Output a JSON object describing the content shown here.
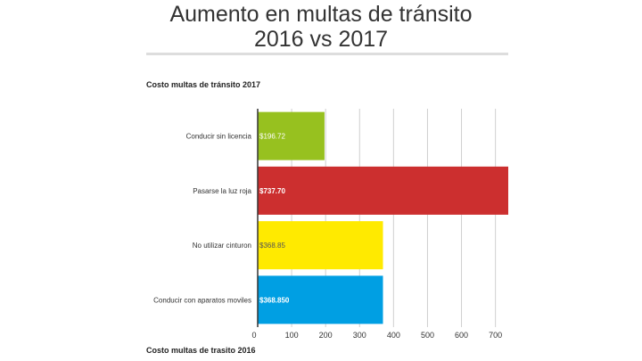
{
  "page": {
    "title": "Aumento en  multas de tránsito\n2016 vs 2017"
  },
  "chart_data": {
    "type": "bar",
    "orientation": "horizontal",
    "title": "Costo multas de tránsito 2017",
    "footer": "Costo multas de trasito 2016",
    "categories": [
      "Conducir sin licencia",
      "Pasarse la luz roja",
      "No utilizar cinturon",
      "Conducir con aparatos moviles"
    ],
    "values": [
      196.72,
      737.7,
      368.85,
      368.85
    ],
    "data_labels": [
      "$196.72",
      "$737.70",
      "$368.85",
      "$368.850"
    ],
    "colors": [
      "#97c11f",
      "#cc2f2f",
      "#ffea00",
      "#009fe3"
    ],
    "label_colors": [
      "#ffffff",
      "#ffffff",
      "#555555",
      "#ffffff"
    ],
    "label_bold": [
      false,
      true,
      false,
      true
    ],
    "x_ticks": [
      0,
      100,
      200,
      300,
      400,
      500,
      600,
      700
    ],
    "xlim": [
      0,
      737.7
    ],
    "grid": true,
    "legend": "none"
  }
}
